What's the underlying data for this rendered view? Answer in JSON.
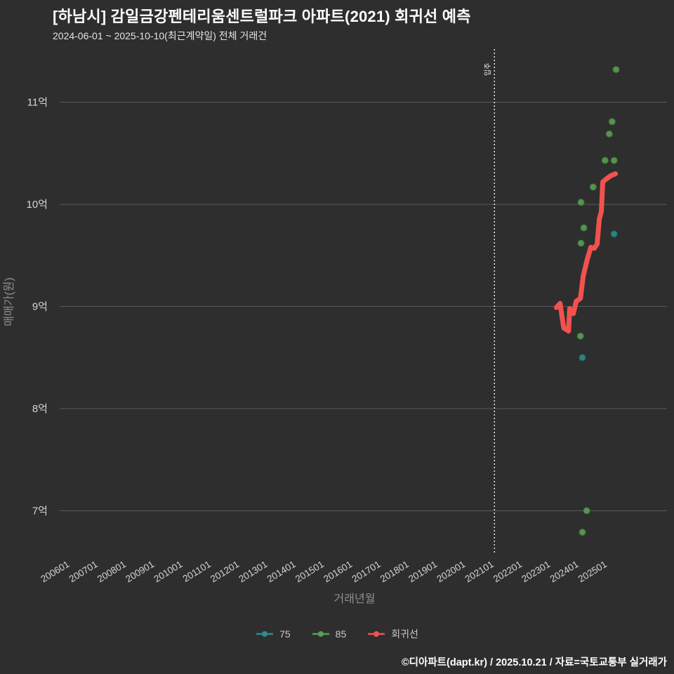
{
  "title": "[하남시] 감일금강펜테리움센트럴파크 아파트(2021) 회귀선 예측",
  "subtitle": "2024-06-01 ~ 2025-10-10(최근계약일) 전체 거래건",
  "footer": "©디아파트(dapt.kr) / 2025.10.21 / 자료=국토교통부 실거래가",
  "colors": {
    "background": "#2e2e2e",
    "grid": "#5a5a5a",
    "tick_text": "#d4d4d4",
    "axis_title": "#8f8f8f",
    "annotation": "#f0f0f0",
    "legend_text": "#c9c9c9"
  },
  "chart_data": {
    "type": "scatter",
    "title": "[하남시] 감일금강펜테리움센트럴파크 아파트(2021) 회귀선 예측",
    "xlabel": "거래년월",
    "ylabel": "매매가(원)",
    "y_unit": "억",
    "grid": true,
    "legend_position": "bottom",
    "xlim": [
      2005.63,
      2027.1
    ],
    "ylim": [
      6.57,
      11.52
    ],
    "y_ticks": [
      {
        "label": "7억",
        "value": 7
      },
      {
        "label": "8억",
        "value": 8
      },
      {
        "label": "9억",
        "value": 9
      },
      {
        "label": "10억",
        "value": 10
      },
      {
        "label": "11억",
        "value": 11
      }
    ],
    "x_ticks": [
      {
        "label": "200601",
        "year": 2006
      },
      {
        "label": "200701",
        "year": 2007
      },
      {
        "label": "200801",
        "year": 2008
      },
      {
        "label": "200901",
        "year": 2009
      },
      {
        "label": "201001",
        "year": 2010
      },
      {
        "label": "201101",
        "year": 2011
      },
      {
        "label": "201201",
        "year": 2012
      },
      {
        "label": "201301",
        "year": 2013
      },
      {
        "label": "201401",
        "year": 2014
      },
      {
        "label": "201501",
        "year": 2015
      },
      {
        "label": "201601",
        "year": 2016
      },
      {
        "label": "201701",
        "year": 2017
      },
      {
        "label": "201801",
        "year": 2018
      },
      {
        "label": "201901",
        "year": 2019
      },
      {
        "label": "202001",
        "year": 2020
      },
      {
        "label": "202101",
        "year": 2021
      },
      {
        "label": "202201",
        "year": 2022
      },
      {
        "label": "202301",
        "year": 2023
      },
      {
        "label": "202401",
        "year": 2024
      },
      {
        "label": "202501",
        "year": 2025
      }
    ],
    "annotation": {
      "label": "입주",
      "x": 2021
    },
    "series": [
      {
        "name": "75",
        "type": "scatter",
        "color": "#2f8d8d",
        "stroke": "#1f6363",
        "points": [
          [
            2025.23,
            9.71
          ],
          [
            2024.11,
            8.5
          ]
        ]
      },
      {
        "name": "85",
        "type": "scatter",
        "color": "#5a9e55",
        "stroke": "#3c7338",
        "points": [
          [
            2025.3,
            11.32
          ],
          [
            2025.16,
            10.81
          ],
          [
            2025.06,
            10.69
          ],
          [
            2024.91,
            10.43
          ],
          [
            2025.23,
            10.43
          ],
          [
            2024.49,
            10.17
          ],
          [
            2024.06,
            10.02
          ],
          [
            2024.16,
            9.77
          ],
          [
            2024.06,
            9.62
          ],
          [
            2024.04,
            8.71
          ],
          [
            2024.26,
            7.0
          ],
          [
            2024.11,
            6.79
          ]
        ]
      },
      {
        "name": "회귀선",
        "type": "line",
        "color": "#f2524e",
        "width": 7,
        "points": [
          [
            2023.19,
            8.99
          ],
          [
            2023.32,
            9.03
          ],
          [
            2023.45,
            8.79
          ],
          [
            2023.62,
            8.76
          ],
          [
            2023.66,
            8.98
          ],
          [
            2023.79,
            8.93
          ],
          [
            2023.89,
            9.05
          ],
          [
            2024.04,
            9.08
          ],
          [
            2024.14,
            9.3
          ],
          [
            2024.29,
            9.47
          ],
          [
            2024.41,
            9.58
          ],
          [
            2024.53,
            9.57
          ],
          [
            2024.63,
            9.61
          ],
          [
            2024.71,
            9.86
          ],
          [
            2024.78,
            9.93
          ],
          [
            2024.83,
            10.22
          ],
          [
            2024.96,
            10.25
          ],
          [
            2025.11,
            10.28
          ],
          [
            2025.28,
            10.3
          ]
        ]
      }
    ]
  }
}
